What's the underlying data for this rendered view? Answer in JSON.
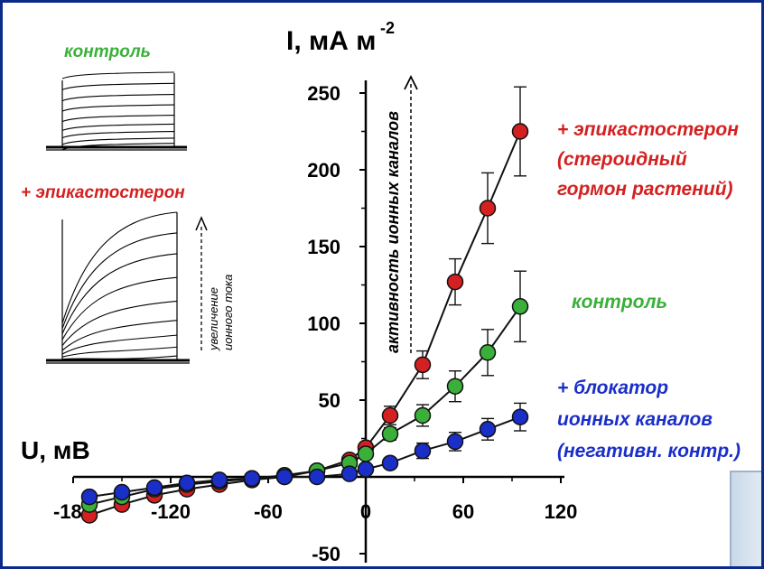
{
  "colors": {
    "frame": "#0b2a8a",
    "epicastosterone": "#d42020",
    "control": "#3ab03a",
    "blocker": "#1a2ec8",
    "line": "#111111"
  },
  "chart_data": {
    "type": "line",
    "ylabel": "I, мА м",
    "ylabel_sup": "-2",
    "xlabel": "U, мВ",
    "xlim": [
      -180,
      120
    ],
    "ylim": [
      -50,
      250
    ],
    "x_ticks": [
      "-180",
      "-120",
      "-60",
      "0",
      "60",
      "120"
    ],
    "y_ticks": [
      "250",
      "200",
      "150",
      "100",
      "50",
      "-50"
    ],
    "arrow_label": "активность ионных каналов",
    "error_bars": true,
    "series": [
      {
        "name": "+ эпикастостерон (стероидный гормон растений)",
        "label_lines": [
          "+ эпикастостерон",
          "(стероидный",
          "гормон растений)"
        ],
        "color": "#d42020",
        "x": [
          -170,
          -150,
          -130,
          -110,
          -90,
          -70,
          -50,
          -30,
          -10,
          0,
          15,
          35,
          55,
          75,
          95
        ],
        "y": [
          -25,
          -18,
          -12,
          -8,
          -5,
          -2,
          0,
          4,
          11,
          19,
          40,
          73,
          127,
          175,
          225
        ],
        "err": [
          2,
          2,
          2,
          2,
          2,
          2,
          2,
          2,
          3,
          3,
          6,
          9,
          15,
          23,
          29
        ]
      },
      {
        "name": "контроль",
        "label_lines": [
          "контроль"
        ],
        "color": "#3ab03a",
        "x": [
          -170,
          -150,
          -130,
          -110,
          -90,
          -70,
          -50,
          -30,
          -10,
          0,
          15,
          35,
          55,
          75,
          95
        ],
        "y": [
          -18,
          -13,
          -8,
          -5,
          -3,
          -1,
          1,
          4,
          9,
          15,
          28,
          40,
          59,
          81,
          111
        ],
        "err": [
          3,
          2,
          2,
          2,
          2,
          2,
          2,
          2,
          2,
          3,
          4,
          7,
          10,
          15,
          23
        ]
      },
      {
        "name": "+ блокатор ионных каналов (негативн. контр.)",
        "label_lines": [
          "+ блокатор",
          "ионных каналов",
          "(негативн. контр.)"
        ],
        "color": "#1a2ec8",
        "x": [
          -170,
          -150,
          -130,
          -110,
          -90,
          -70,
          -50,
          -30,
          -10,
          0,
          15,
          35,
          55,
          75,
          95
        ],
        "y": [
          -13,
          -10,
          -7,
          -4,
          -2,
          -1,
          0,
          0,
          2,
          5,
          9,
          17,
          23,
          31,
          39
        ],
        "err": [
          3,
          2,
          2,
          2,
          2,
          2,
          2,
          2,
          2,
          2,
          3,
          5,
          6,
          7,
          9
        ]
      }
    ]
  },
  "insets": {
    "control_title": "контроль",
    "epi_title": "+ эпикастостерон",
    "arrow_label_lines": [
      "увеличение",
      "ионного тока"
    ],
    "control_final_levels": [
      1.0,
      0.85,
      0.7,
      0.56,
      0.42,
      0.3,
      0.2,
      0.11,
      0.04
    ],
    "epi_final_levels": [
      1.0,
      0.86,
      0.72,
      0.56,
      0.4,
      0.27,
      0.17,
      0.09,
      0.03
    ]
  }
}
